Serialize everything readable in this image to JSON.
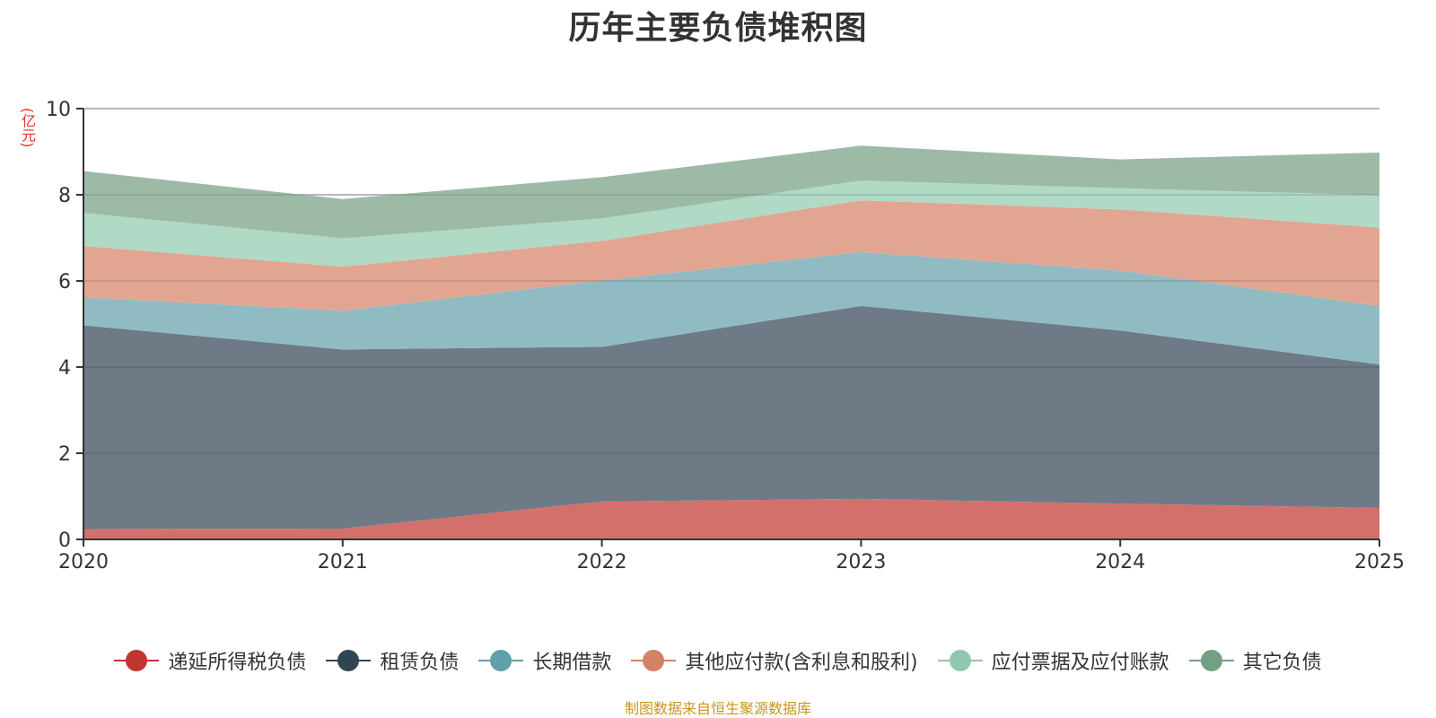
{
  "chart_data": {
    "type": "area",
    "stacked": true,
    "title": "历年主要负债堆积图",
    "ylabel": "(亿元)",
    "xlabel": "",
    "x": [
      "2020",
      "2021",
      "2022",
      "2023",
      "2024",
      "2025"
    ],
    "ylim": [
      0,
      10
    ],
    "yticks": [
      "0",
      "2",
      "4",
      "6",
      "8",
      "10"
    ],
    "grid": true,
    "legend_position": "bottom",
    "series": [
      {
        "name": "递延所得税负债",
        "color": "#c23531",
        "fill": "#d4706c",
        "values": [
          0.24,
          0.25,
          0.88,
          0.94,
          0.83,
          0.73
        ]
      },
      {
        "name": "租赁负债",
        "color": "#2f4554",
        "fill": "#6e7b87",
        "values": [
          4.73,
          4.16,
          3.59,
          4.48,
          4.02,
          3.33
        ]
      },
      {
        "name": "长期借款",
        "color": "#61a0a8",
        "fill": "#91bbc2",
        "values": [
          0.65,
          0.9,
          1.54,
          1.25,
          1.39,
          1.36
        ]
      },
      {
        "name": "其他应付款(含利息和股利)",
        "color": "#d48265",
        "fill": "#e2a591",
        "values": [
          1.19,
          1.02,
          0.92,
          1.2,
          1.42,
          1.82
        ]
      },
      {
        "name": "应付票据及应付账款",
        "color": "#91c7ae",
        "fill": "#b0d9c6",
        "values": [
          0.77,
          0.66,
          0.52,
          0.46,
          0.49,
          0.75
        ]
      },
      {
        "name": "其它负债",
        "color": "#749f83",
        "fill": "#9dbaa7",
        "values": [
          0.97,
          0.91,
          0.96,
          0.81,
          0.67,
          0.99
        ]
      }
    ]
  },
  "source_note": "制图数据来自恒生聚源数据库"
}
